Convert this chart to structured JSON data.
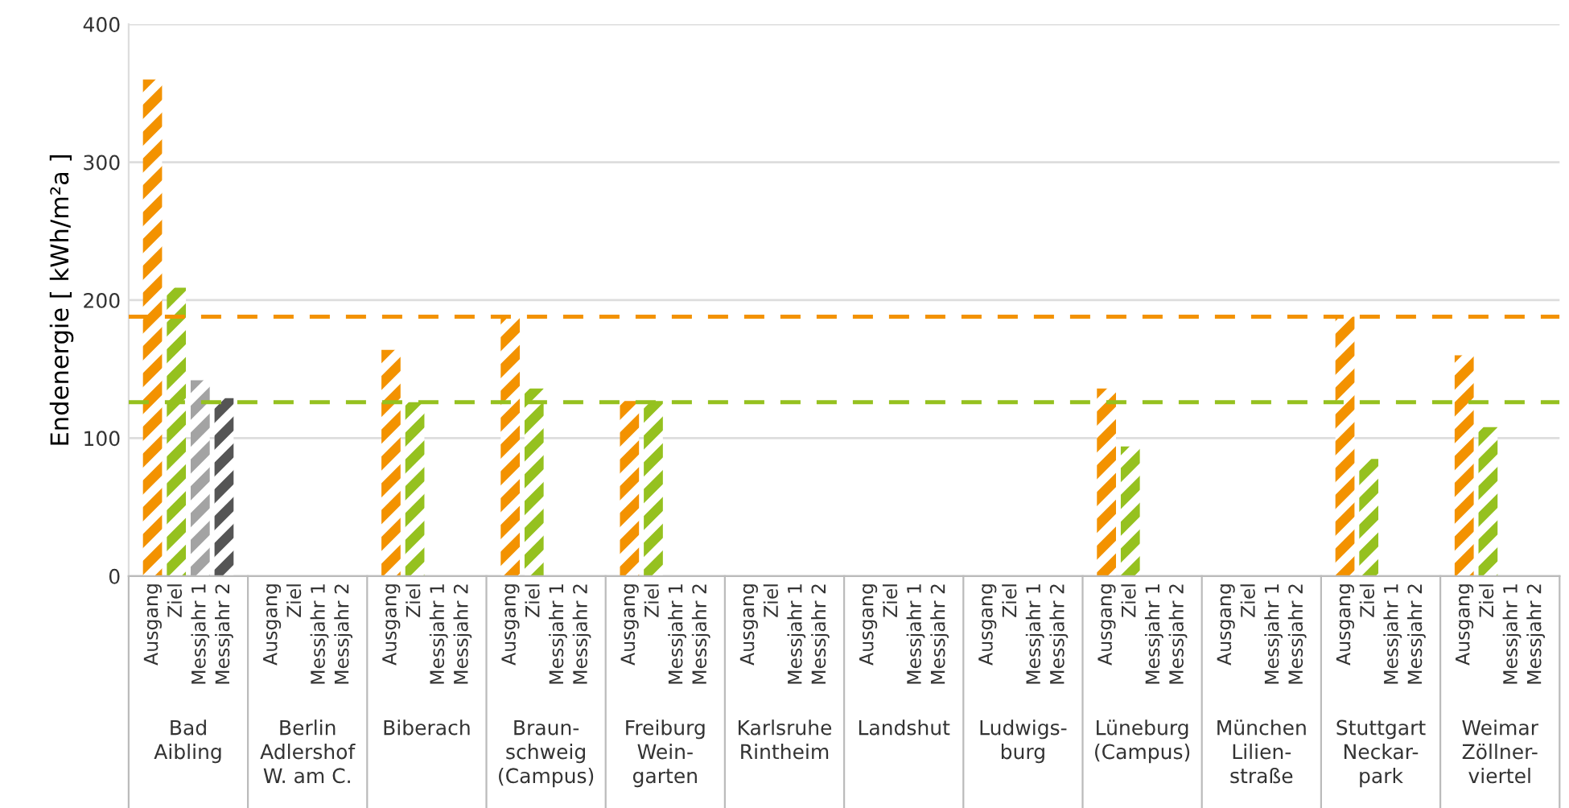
{
  "chart_data": {
    "type": "bar",
    "ylabel": "Endenergie [ kWh/m²a ]",
    "categories": [
      "Bad\nAibling",
      "Berlin\nAdlershof\nW. am C.",
      "Biberach",
      "Braun-\nschweig\n(Campus)",
      "Freiburg\nWein-\ngarten",
      "Karlsruhe\nRintheim",
      "Landshut",
      "Ludwigs-\nburg",
      "Lüneburg\n(Campus)",
      "München\nLilien-\nstraße",
      "Stuttgart\nNeckar-\npark",
      "Weimar\nZöllner-\nviertel"
    ],
    "series": [
      {
        "name": "Ausgang",
        "color": "#f39200",
        "values": [
          360,
          null,
          164,
          188,
          127,
          null,
          null,
          null,
          136,
          null,
          188,
          160
        ]
      },
      {
        "name": "Ziel",
        "color": "#95c11f",
        "values": [
          209,
          null,
          126,
          136,
          127,
          null,
          null,
          null,
          94,
          null,
          85,
          108
        ]
      },
      {
        "name": "Messjahr 1",
        "color": "#a3a3a3",
        "values": [
          142,
          null,
          null,
          null,
          null,
          null,
          null,
          null,
          null,
          null,
          null,
          null
        ]
      },
      {
        "name": "Messjahr 2",
        "color": "#555555",
        "values": [
          129,
          null,
          null,
          null,
          null,
          null,
          null,
          null,
          null,
          null,
          null,
          null
        ]
      }
    ],
    "ylim": [
      0,
      400
    ],
    "yticks": [
      0,
      100,
      200,
      300,
      400
    ],
    "grid": "y",
    "ref_lines": [
      {
        "axis": "y",
        "value": 188,
        "label": null,
        "color": "#f39200",
        "line_style": "dashed"
      },
      {
        "axis": "y",
        "value": 126,
        "label": null,
        "color": "#95c11f",
        "line_style": "dashed"
      }
    ]
  }
}
